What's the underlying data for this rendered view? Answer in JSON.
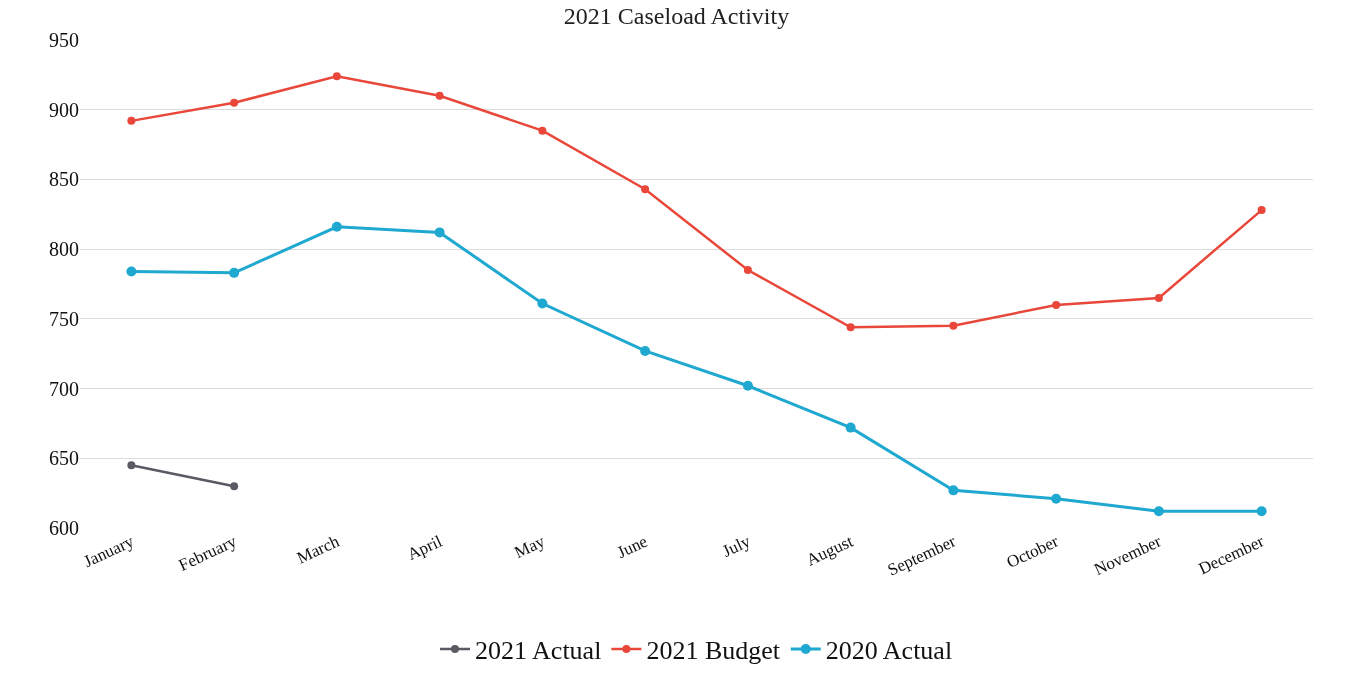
{
  "chart_data": {
    "type": "line",
    "title": "2021 Caseload Activity",
    "categories": [
      "January",
      "February",
      "March",
      "April",
      "May",
      "June",
      "July",
      "August",
      "September",
      "October",
      "November",
      "December"
    ],
    "series": [
      {
        "name": "2021 Actual",
        "color": "#5a5a64",
        "values": [
          645,
          630,
          null,
          null,
          null,
          null,
          null,
          null,
          null,
          null,
          null,
          null
        ]
      },
      {
        "name": "2021 Budget",
        "color": "#e8473a",
        "values": [
          892,
          905,
          924,
          910,
          885,
          843,
          785,
          744,
          745,
          760,
          765,
          828
        ]
      },
      {
        "name": "2020 Actual",
        "color": "#1fa8d0",
        "values": [
          784,
          783,
          816,
          812,
          761,
          727,
          702,
          672,
          627,
          621,
          612,
          612
        ]
      }
    ],
    "ylim": [
      600,
      950
    ],
    "yticks": [
      600,
      650,
      700,
      750,
      800,
      850,
      900,
      950
    ],
    "grid": "y",
    "legend": "bottom",
    "marker": "circle",
    "line_style": "solid"
  }
}
